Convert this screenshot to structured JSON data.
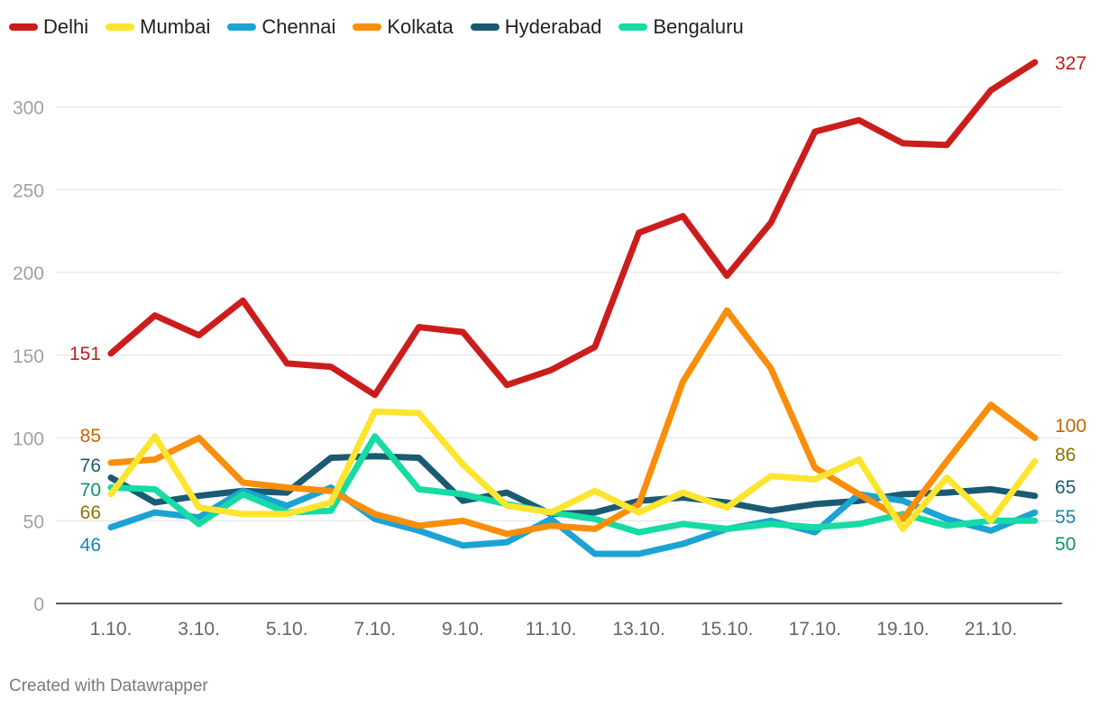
{
  "chart_data": {
    "type": "line",
    "categories": [
      "1.10.",
      "2.10.",
      "3.10.",
      "4.10.",
      "5.10.",
      "6.10.",
      "7.10.",
      "8.10.",
      "9.10.",
      "10.10.",
      "11.10.",
      "12.10.",
      "13.10.",
      "14.10.",
      "15.10.",
      "16.10.",
      "17.10.",
      "18.10.",
      "19.10.",
      "20.10.",
      "21.10.",
      "22.10."
    ],
    "x_tick_labels": [
      "1.10.",
      "3.10.",
      "5.10.",
      "7.10.",
      "9.10.",
      "11.10.",
      "13.10.",
      "15.10.",
      "17.10.",
      "19.10.",
      "21.10."
    ],
    "y_ticks": [
      0,
      50,
      100,
      150,
      200,
      250,
      300
    ],
    "ylim": [
      0,
      327
    ],
    "grid": true,
    "legend_position": "top-left",
    "series": [
      {
        "name": "Hyderabad",
        "color": "#1b5a73",
        "start_label": "76",
        "end_label": "65",
        "values": [
          76,
          61,
          65,
          68,
          67,
          88,
          89,
          88,
          62,
          67,
          54,
          55,
          62,
          64,
          61,
          56,
          60,
          62,
          66,
          67,
          69,
          65
        ]
      },
      {
        "name": "Chennai",
        "color": "#1ba3d4",
        "start_label": "46",
        "end_label": "55",
        "values": [
          46,
          55,
          52,
          68,
          59,
          70,
          51,
          44,
          35,
          37,
          51,
          30,
          30,
          36,
          45,
          50,
          43,
          66,
          62,
          51,
          44,
          55
        ]
      },
      {
        "name": "Bengaluru",
        "color": "#17dba4",
        "start_label": "70",
        "end_label": "50",
        "values": [
          70,
          69,
          48,
          66,
          55,
          56,
          101,
          69,
          66,
          60,
          55,
          51,
          43,
          48,
          45,
          48,
          46,
          48,
          54,
          47,
          50,
          50
        ]
      },
      {
        "name": "Kolkata",
        "color": "#fa8e0a",
        "start_label": "85",
        "end_label": "100",
        "values": [
          85,
          87,
          100,
          73,
          70,
          68,
          54,
          47,
          50,
          42,
          47,
          45,
          60,
          134,
          177,
          142,
          82,
          66,
          51,
          86,
          120,
          100
        ]
      },
      {
        "name": "Mumbai",
        "color": "#fde52f",
        "start_label": "66",
        "end_label": "86",
        "values": [
          66,
          101,
          58,
          54,
          54,
          61,
          116,
          115,
          84,
          59,
          55,
          68,
          55,
          67,
          58,
          77,
          75,
          87,
          45,
          76,
          50,
          86
        ]
      },
      {
        "name": "Delhi",
        "color": "#cc1d1d",
        "start_label": "151",
        "end_label": "327",
        "values": [
          151,
          174,
          162,
          183,
          145,
          143,
          126,
          167,
          164,
          132,
          141,
          155,
          224,
          234,
          198,
          230,
          285,
          292,
          278,
          277,
          310,
          327
        ]
      }
    ],
    "label_colors": {
      "Delhi": "#c0201c",
      "Mumbai": "#8a7400",
      "Chennai": "#1785b0",
      "Kolkata": "#c56600",
      "Hyderabad": "#1b5a73",
      "Bengaluru": "#0a9470"
    }
  },
  "legend": [
    {
      "label": "Delhi",
      "color": "#cc1d1d"
    },
    {
      "label": "Mumbai",
      "color": "#fde52f"
    },
    {
      "label": "Chennai",
      "color": "#1ba3d4"
    },
    {
      "label": "Kolkata",
      "color": "#fa8e0a"
    },
    {
      "label": "Hyderabad",
      "color": "#1b5a73"
    },
    {
      "label": "Bengaluru",
      "color": "#17dba4"
    }
  ],
  "footer": {
    "credit": "Created with Datawrapper"
  }
}
